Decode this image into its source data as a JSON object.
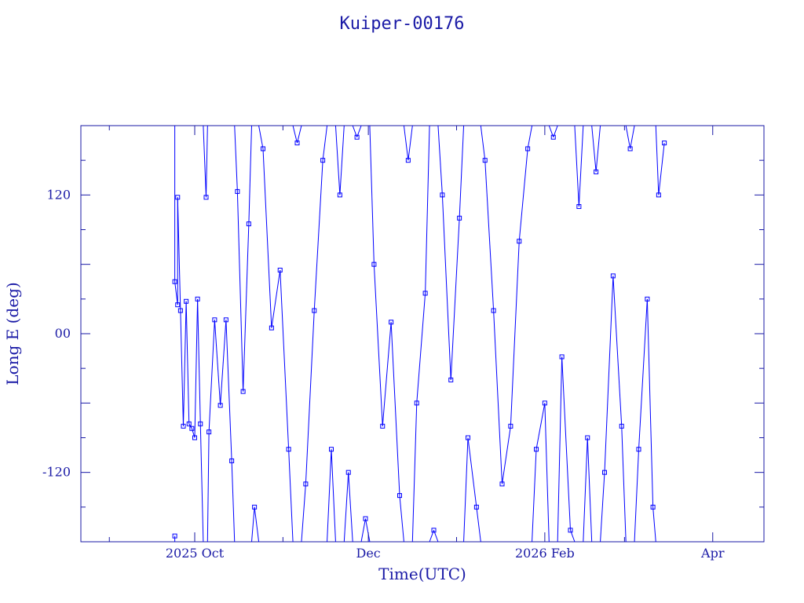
{
  "chart_data": {
    "type": "line",
    "title": "Kuiper-00176",
    "xlabel": "Time(UTC)",
    "ylabel": "Long E (deg)",
    "x_type": "date",
    "xlim": [
      "2025-08-22",
      "2026-04-19"
    ],
    "ylim": [
      -180,
      180
    ],
    "x_ticks": [
      {
        "date": "2025-10-01",
        "label": "2025 Oct"
      },
      {
        "date": "2025-12-01",
        "label": "Dec"
      },
      {
        "date": "2026-02-01",
        "label": "2026 Feb"
      },
      {
        "date": "2026-04-01",
        "label": "Apr"
      }
    ],
    "y_ticks": [
      {
        "value": 120,
        "label": "120"
      },
      {
        "value": 0,
        "label": "00"
      },
      {
        "value": -120,
        "label": "-120"
      }
    ],
    "grid": false,
    "series": [
      {
        "color": "#0000ff",
        "marker": "square",
        "x": [
          "2025-09-24",
          "2025-09-24",
          "2025-09-25",
          "2025-09-25",
          "2025-09-26",
          "2025-09-27",
          "2025-09-28",
          "2025-09-29",
          "2025-09-30",
          "2025-10-01",
          "2025-10-02",
          "2025-10-03",
          "2025-10-05",
          "2025-10-06",
          "2025-10-08",
          "2025-10-10",
          "2025-10-12",
          "2025-10-14",
          "2025-10-16",
          "2025-10-18",
          "2025-10-20",
          "2025-10-22",
          "2025-10-25",
          "2025-10-28",
          "2025-10-31",
          "2025-11-03",
          "2025-11-06",
          "2025-11-09",
          "2025-11-12",
          "2025-11-15",
          "2025-11-18",
          "2025-11-21",
          "2025-11-24",
          "2025-11-27",
          "2025-11-30",
          "2025-12-03",
          "2025-12-06",
          "2025-12-09",
          "2025-12-12",
          "2025-12-15",
          "2025-12-18",
          "2025-12-21",
          "2025-12-24",
          "2025-12-27",
          "2025-12-30",
          "2026-01-02",
          "2026-01-05",
          "2026-01-08",
          "2026-01-11",
          "2026-01-14",
          "2026-01-17",
          "2026-01-20",
          "2026-01-23",
          "2026-01-26",
          "2026-01-29",
          "2026-02-01",
          "2026-02-04",
          "2026-02-07",
          "2026-02-10",
          "2026-02-13",
          "2026-02-16",
          "2026-02-19",
          "2026-02-22",
          "2026-02-25",
          "2026-02-28",
          "2026-03-03",
          "2026-03-06",
          "2026-03-09",
          "2026-03-11",
          "2026-03-13",
          "2026-03-15"
        ],
        "y": [
          -175,
          45,
          25,
          118,
          20,
          -80,
          28,
          -78,
          -82,
          -90,
          30,
          -78,
          118,
          -85,
          12,
          -62,
          12,
          -110,
          123,
          -50,
          95,
          -150,
          160,
          5,
          55,
          -100,
          165,
          -130,
          20,
          150,
          -100,
          120,
          -120,
          170,
          -160,
          60,
          -80,
          10,
          -140,
          150,
          -60,
          35,
          -170,
          120,
          -40,
          100,
          -90,
          -150,
          150,
          20,
          -130,
          -80,
          80,
          160,
          -100,
          -60,
          170,
          -20,
          -170,
          110,
          -90,
          140,
          -120,
          50,
          -80,
          160,
          -100,
          30,
          -150,
          120,
          165
        ]
      }
    ]
  }
}
